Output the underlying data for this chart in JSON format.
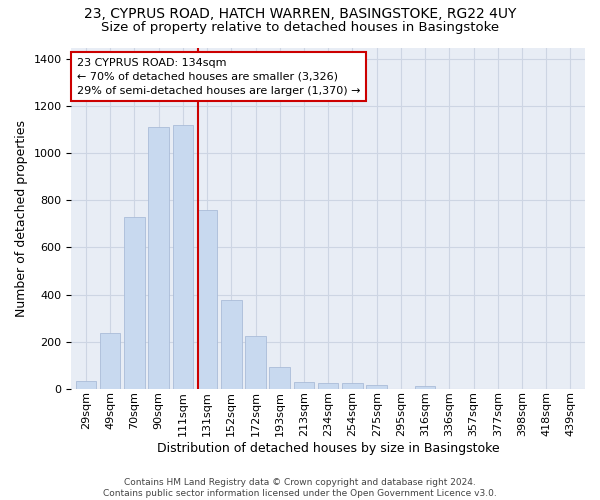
{
  "title_line1": "23, CYPRUS ROAD, HATCH WARREN, BASINGSTOKE, RG22 4UY",
  "title_line2": "Size of property relative to detached houses in Basingstoke",
  "xlabel": "Distribution of detached houses by size in Basingstoke",
  "ylabel": "Number of detached properties",
  "categories": [
    "29sqm",
    "49sqm",
    "70sqm",
    "90sqm",
    "111sqm",
    "131sqm",
    "152sqm",
    "172sqm",
    "193sqm",
    "213sqm",
    "234sqm",
    "254sqm",
    "275sqm",
    "295sqm",
    "316sqm",
    "336sqm",
    "357sqm",
    "377sqm",
    "398sqm",
    "418sqm",
    "439sqm"
  ],
  "values": [
    32,
    235,
    730,
    1110,
    1120,
    760,
    378,
    225,
    90,
    30,
    25,
    22,
    15,
    0,
    12,
    0,
    0,
    0,
    0,
    0,
    0
  ],
  "bar_color": "#c8d9ef",
  "bar_edge_color": "#aabcd8",
  "grid_color": "#cdd5e3",
  "bg_color": "#e8edf5",
  "annotation_text": "23 CYPRUS ROAD: 134sqm\n← 70% of detached houses are smaller (3,326)\n29% of semi-detached houses are larger (1,370) →",
  "vline_x_index": 4.62,
  "annotation_box_color": "#ffffff",
  "annotation_box_edge": "#cc0000",
  "vline_color": "#cc0000",
  "footer": "Contains HM Land Registry data © Crown copyright and database right 2024.\nContains public sector information licensed under the Open Government Licence v3.0.",
  "ylim": [
    0,
    1450
  ],
  "title_fontsize": 10,
  "subtitle_fontsize": 9.5,
  "axis_label_fontsize": 9,
  "tick_fontsize": 8,
  "annotation_fontsize": 8
}
